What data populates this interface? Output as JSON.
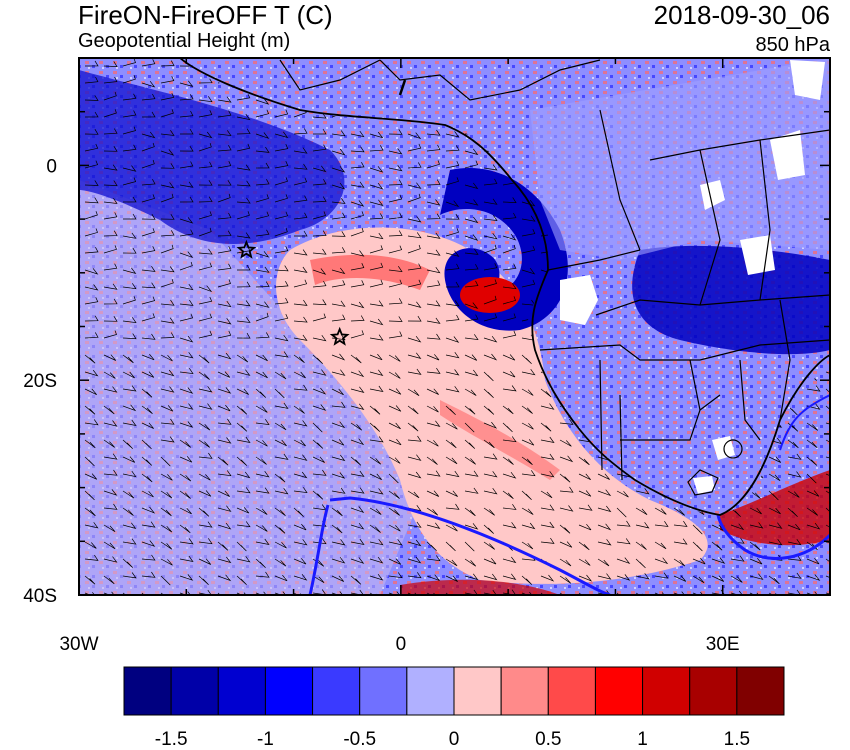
{
  "header": {
    "title": "FireON-FireOFF T (C)",
    "subtitle": "Geopotential Height (m)",
    "datetime": "2018-09-30_06",
    "level": "850 hPa"
  },
  "map": {
    "lon_range": [
      -30,
      40
    ],
    "lat_range": [
      -40,
      10
    ],
    "lat_tick_labels": [
      {
        "lat": 0,
        "label": "0"
      },
      {
        "lat": -20,
        "label": "20S"
      },
      {
        "lat": -40,
        "label": "40S"
      }
    ],
    "lon_tick_labels": [
      {
        "lon": -30,
        "label": "30W"
      },
      {
        "lon": 0,
        "label": "0"
      },
      {
        "lon": 30,
        "label": "30E"
      }
    ],
    "markers": [
      {
        "name": "star",
        "lon": -14.4,
        "lat": -7.9
      },
      {
        "name": "star",
        "lon": -5.7,
        "lat": -16.0
      }
    ]
  },
  "colorbar": {
    "colors": [
      "#000080",
      "#0000a8",
      "#0000d0",
      "#0000ff",
      "#3a3aff",
      "#7070ff",
      "#b0b0ff",
      "#ffc8c8",
      "#ff8a8a",
      "#ff4a4a",
      "#ff0000",
      "#d00000",
      "#a80000",
      "#800000"
    ],
    "tick_labels": [
      {
        "boundary": 1,
        "label": "-1.5"
      },
      {
        "boundary": 3,
        "label": "-1"
      },
      {
        "boundary": 5,
        "label": "-0.5"
      },
      {
        "boundary": 7,
        "label": "0"
      },
      {
        "boundary": 9,
        "label": "0.5"
      },
      {
        "boundary": 11,
        "label": "1"
      },
      {
        "boundary": 13,
        "label": "1.5"
      }
    ]
  }
}
